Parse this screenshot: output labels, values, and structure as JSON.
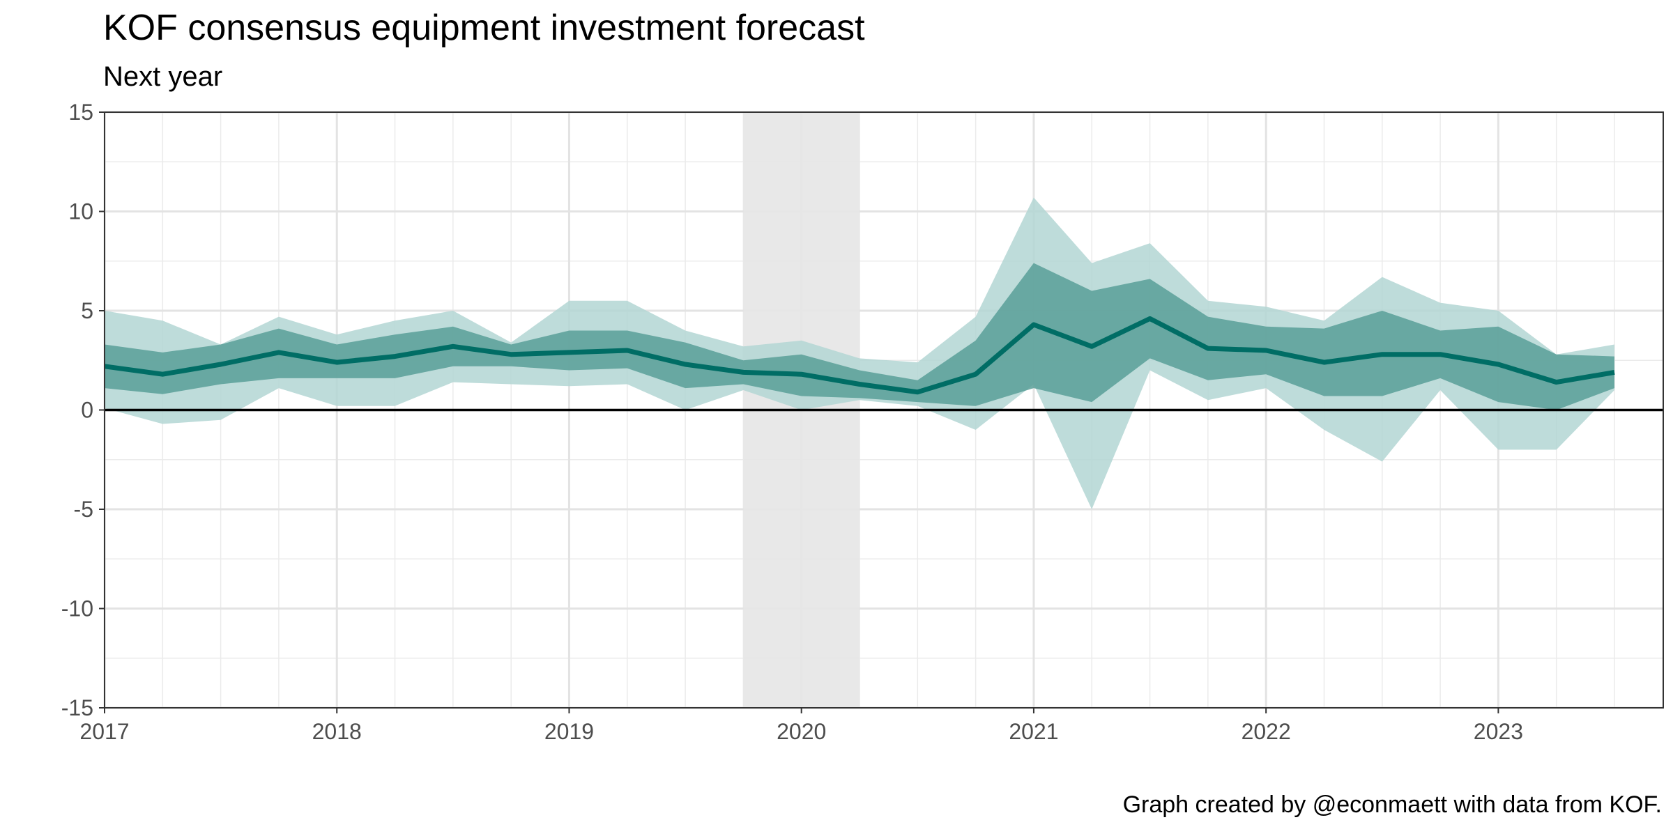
{
  "chart_data": {
    "type": "area",
    "title": "KOF consensus equipment investment forecast",
    "subtitle": "Next year",
    "caption": "Graph created by @econmaett with data from KOF.",
    "xlabel": "",
    "ylabel": "",
    "xlim": [
      2017.0,
      2023.71
    ],
    "ylim": [
      -15,
      15
    ],
    "x_ticks": [
      2017,
      2018,
      2019,
      2020,
      2021,
      2022,
      2023
    ],
    "x_tick_labels": [
      "2017",
      "2018",
      "2019",
      "2020",
      "2021",
      "2022",
      "2023"
    ],
    "y_ticks": [
      -15,
      -10,
      -5,
      0,
      5,
      10,
      15
    ],
    "y_tick_labels": [
      "-15",
      "-10",
      "-5",
      "0",
      "5",
      "10",
      "15"
    ],
    "grid": true,
    "legend": "none",
    "shaded_period": {
      "x_start": 2019.75,
      "x_end": 2020.25,
      "color": "#e5e5e5"
    },
    "hline": {
      "y": 0,
      "color": "#000000"
    },
    "colors": {
      "outer_band": "#b3d6d3",
      "inner_band": "#599f98",
      "median_line": "#006d65"
    },
    "x": [
      2017.0,
      2017.25,
      2017.5,
      2017.75,
      2018.0,
      2018.25,
      2018.5,
      2018.75,
      2019.0,
      2019.25,
      2019.5,
      2019.75,
      2020.0,
      2020.25,
      2020.5,
      2020.75,
      2021.0,
      2021.25,
      2021.5,
      2021.75,
      2022.0,
      2022.25,
      2022.5,
      2022.75,
      2023.0,
      2023.25,
      2023.5
    ],
    "series": [
      {
        "role": "outer_band_low",
        "values": [
          0.1,
          -0.7,
          -0.5,
          1.1,
          0.2,
          0.2,
          1.4,
          1.3,
          1.2,
          1.3,
          0.0,
          1.0,
          0.0,
          0.5,
          0.2,
          -1.0,
          1.3,
          -5.0,
          2.0,
          0.5,
          1.1,
          -1.0,
          -2.6,
          1.0,
          -2.0,
          -2.0,
          1.0
        ]
      },
      {
        "role": "inner_band_low",
        "values": [
          1.1,
          0.8,
          1.3,
          1.6,
          1.6,
          1.6,
          2.2,
          2.2,
          2.0,
          2.1,
          1.1,
          1.3,
          0.7,
          0.6,
          0.4,
          0.2,
          1.1,
          0.4,
          2.6,
          1.5,
          1.8,
          0.7,
          0.7,
          1.6,
          0.4,
          0.0,
          1.1
        ]
      },
      {
        "role": "median",
        "values": [
          2.2,
          1.8,
          2.3,
          2.9,
          2.4,
          2.7,
          3.2,
          2.8,
          2.9,
          3.0,
          2.3,
          1.9,
          1.8,
          1.3,
          0.9,
          1.8,
          4.3,
          3.2,
          4.6,
          3.1,
          3.0,
          2.4,
          2.8,
          2.8,
          2.3,
          1.4,
          1.9
        ]
      },
      {
        "role": "inner_band_high",
        "values": [
          3.3,
          2.9,
          3.3,
          4.1,
          3.3,
          3.8,
          4.2,
          3.3,
          4.0,
          4.0,
          3.4,
          2.5,
          2.8,
          2.0,
          1.5,
          3.5,
          7.4,
          6.0,
          6.6,
          4.7,
          4.2,
          4.1,
          5.0,
          4.0,
          4.2,
          2.8,
          2.7
        ]
      },
      {
        "role": "outer_band_high",
        "values": [
          5.0,
          4.5,
          3.3,
          4.7,
          3.8,
          4.5,
          5.0,
          3.4,
          5.5,
          5.5,
          4.0,
          3.2,
          3.5,
          2.6,
          2.4,
          4.7,
          10.7,
          7.4,
          8.4,
          5.5,
          5.2,
          4.5,
          6.7,
          5.4,
          5.0,
          2.8,
          3.3
        ]
      }
    ]
  }
}
